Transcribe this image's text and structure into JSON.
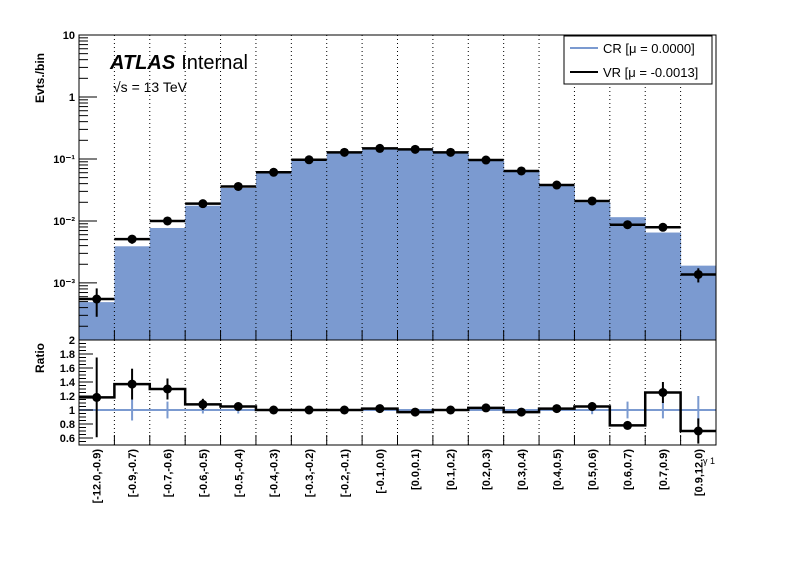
{
  "chart_data": {
    "type": "bar",
    "subtype": "histogram-with-ratio",
    "labels": {
      "experiment": "ATLAS",
      "status": "Internal",
      "energy": "√s = 13 TeV"
    },
    "ylabel": "Evts./bin",
    "ratio_ylabel": "Ratio",
    "xlabel": "γ 1",
    "yscale": "log",
    "ylim": [
      0.00012,
      10
    ],
    "ytick_labels": [
      "10",
      "1",
      "10⁻¹",
      "10⁻²",
      "10⁻³"
    ],
    "ratio_ylim": [
      0.5,
      2.0
    ],
    "ratio_tick_labels": [
      "0.6",
      "0.8",
      "1",
      "1.2",
      "1.4",
      "1.6",
      "1.8",
      "2"
    ],
    "grid": "vertical-dotted",
    "legend_position": "top-right",
    "categories": [
      "[-12.0,-0.9)",
      "[-0.9,-0.7)",
      "[-0.7,-0.6)",
      "[-0.6,-0.5)",
      "[-0.5,-0.4)",
      "[-0.4,-0.3)",
      "[-0.3,-0.2)",
      "[-0.2,-0.1)",
      "[-0.1,0.0)",
      "[0.0,0.1)",
      "[0.1,0.2)",
      "[0.2,0.3)",
      "[0.3,0.4)",
      "[0.4,0.5)",
      "[0.5,0.6)",
      "[0.6,0.7)",
      "[0.7,0.9)",
      "[0.9,12.0)"
    ],
    "series": [
      {
        "name": "CR [μ = 0.0000]",
        "style": "filled",
        "color": "#7b9ad0",
        "values": [
          0.00049,
          0.0039,
          0.0077,
          0.0176,
          0.034,
          0.06,
          0.096,
          0.127,
          0.145,
          0.147,
          0.127,
          0.093,
          0.066,
          0.037,
          0.02,
          0.0115,
          0.0065,
          0.0019
        ],
        "ratio_errors": [
          0,
          0.15,
          0.12,
          0.05,
          0.05,
          0.02,
          0.02,
          0.02,
          0.02,
          0.02,
          0.02,
          0.02,
          0.02,
          0.03,
          0.06,
          0.12,
          0.12,
          0.2
        ]
      },
      {
        "name": "VR [μ = -0.0013]",
        "style": "points",
        "color": "#000000",
        "values": [
          0.00055,
          0.0051,
          0.01,
          0.019,
          0.036,
          0.061,
          0.097,
          0.128,
          0.148,
          0.143,
          0.128,
          0.096,
          0.064,
          0.038,
          0.021,
          0.0087,
          0.0079,
          0.00137
        ],
        "ratio": [
          1.18,
          1.37,
          1.3,
          1.08,
          1.05,
          1.0,
          1.0,
          1.0,
          1.02,
          0.97,
          1.0,
          1.03,
          0.97,
          1.02,
          1.05,
          0.78,
          1.25,
          0.7
        ],
        "ratio_errors": [
          0.57,
          0.22,
          0.15,
          0.08,
          0.05,
          0.02,
          0.02,
          0.02,
          0.02,
          0.02,
          0.02,
          0.03,
          0.03,
          0.03,
          0.06,
          0.06,
          0.15,
          0.18
        ]
      }
    ]
  }
}
